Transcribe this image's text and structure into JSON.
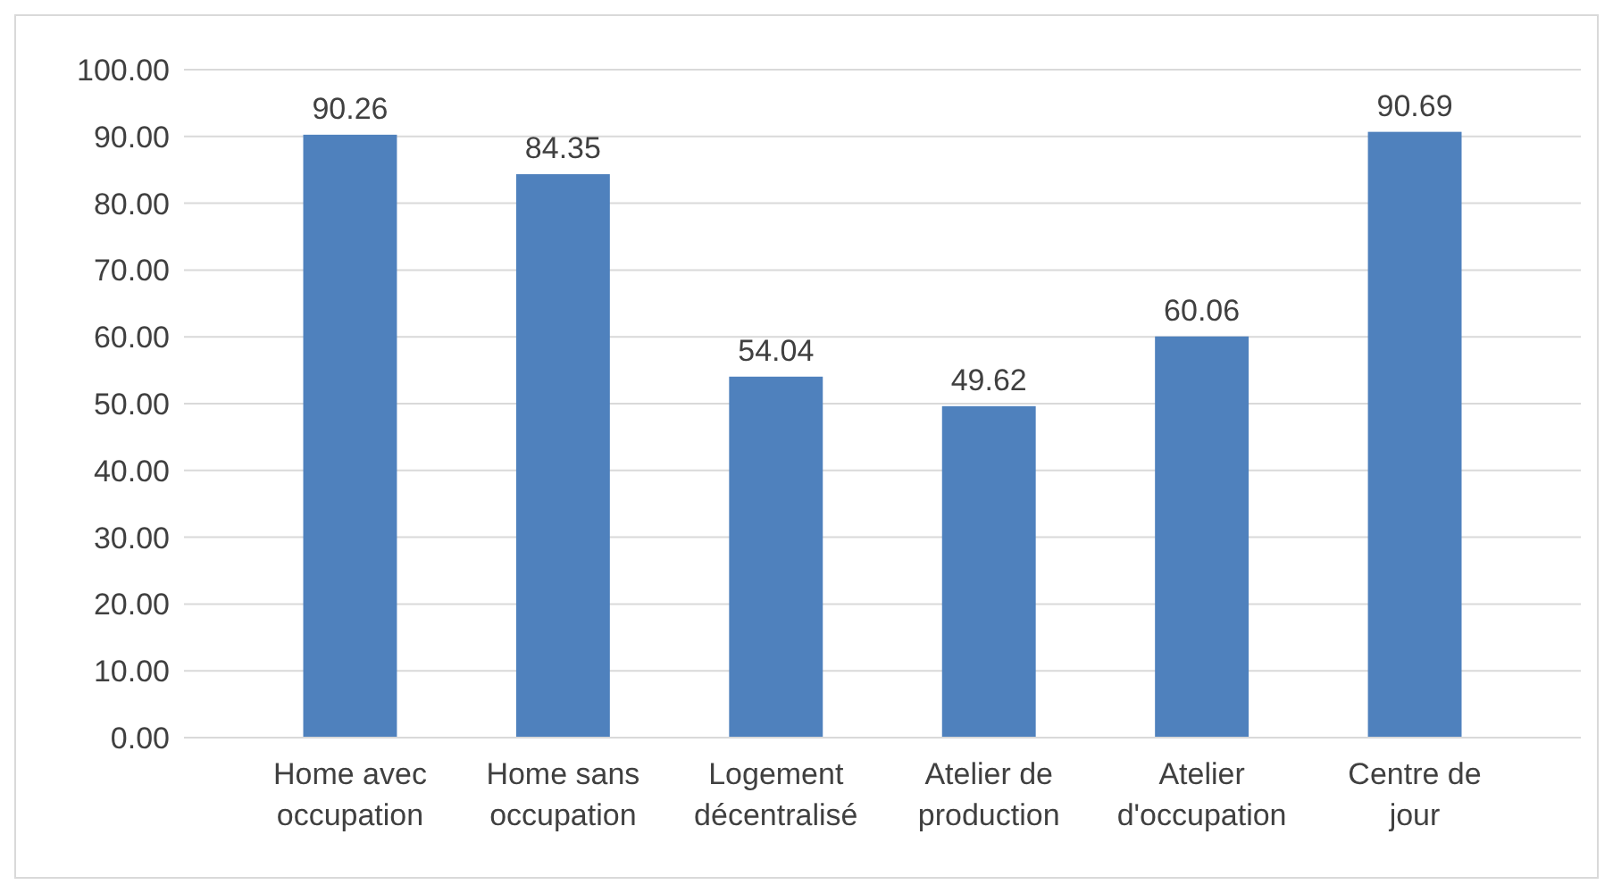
{
  "chart_data": {
    "type": "bar",
    "categories": [
      "Home avec occupation",
      "Home sans occupation",
      "Logement décentralisé",
      "Atelier de production",
      "Atelier d'occupation",
      "Centre de jour"
    ],
    "values": [
      90.26,
      84.35,
      54.04,
      49.62,
      60.06,
      90.69
    ],
    "color": "#4f81bd",
    "ylim": [
      0,
      100
    ],
    "yticks": [
      {
        "value": 0,
        "label": "0.00"
      },
      {
        "value": 10,
        "label": "10.00"
      },
      {
        "value": 20,
        "label": "20.00"
      },
      {
        "value": 30,
        "label": "30.00"
      },
      {
        "value": 40,
        "label": "40.00"
      },
      {
        "value": 50,
        "label": "50.00"
      },
      {
        "value": 60,
        "label": "60.00"
      },
      {
        "value": 70,
        "label": "70.00"
      },
      {
        "value": 80,
        "label": "80.00"
      },
      {
        "value": 90,
        "label": "90.00"
      },
      {
        "value": 100,
        "label": "100.00"
      }
    ],
    "grid": "y",
    "data_labels": true
  }
}
